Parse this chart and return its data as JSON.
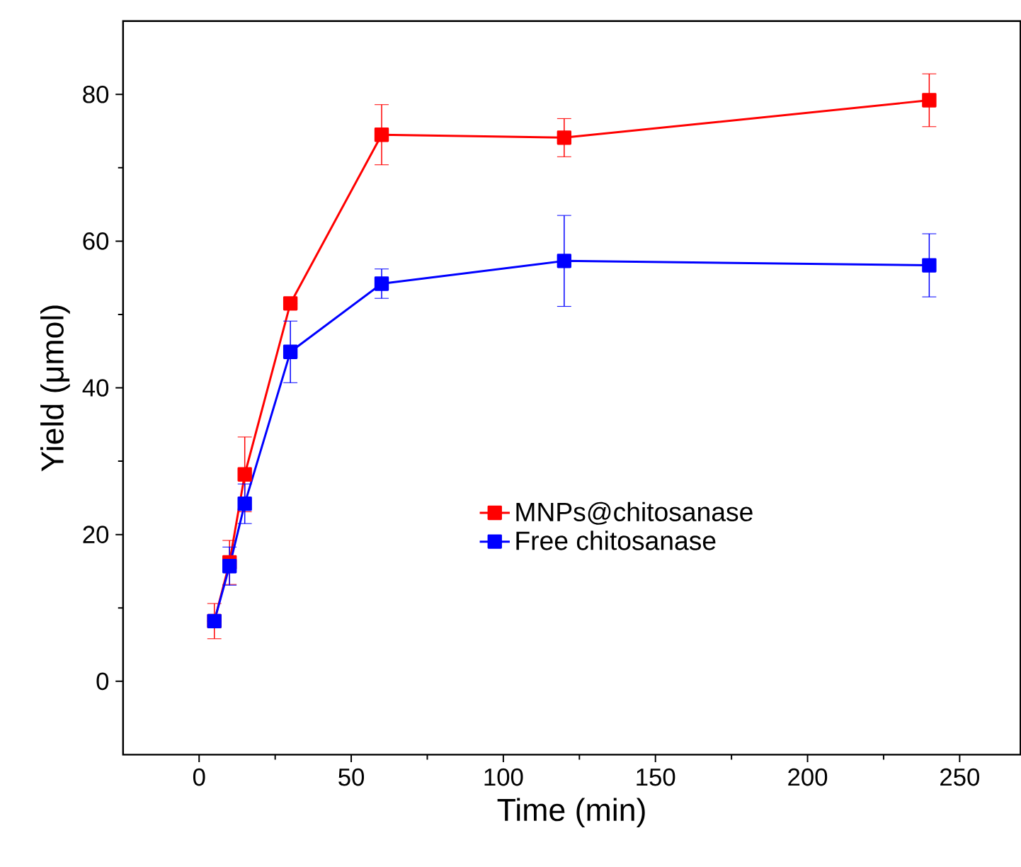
{
  "chart_data": {
    "type": "line",
    "xlabel": "Time (min)",
    "ylabel": "Yield (μmol)",
    "x": [
      5,
      10,
      15,
      30,
      60,
      120,
      240
    ],
    "series": [
      {
        "name": "MNPs@chitosanase",
        "color": "#ff0000",
        "values": [
          8.2,
          16.2,
          28.2,
          51.5,
          74.5,
          74.1,
          79.2
        ],
        "errors": [
          2.4,
          3,
          5.1,
          null,
          4.1,
          2.6,
          3.6
        ]
      },
      {
        "name": "Free chitosanase",
        "color": "#0000ff",
        "values": [
          8.2,
          15.7,
          24.2,
          44.9,
          54.2,
          57.3,
          56.7
        ],
        "errors": [
          null,
          2.6,
          2.7,
          4.2,
          2,
          6.2,
          4.3
        ]
      }
    ],
    "xlim": [
      -25,
      270
    ],
    "ylim": [
      -10,
      90
    ],
    "xticks": [
      0,
      50,
      100,
      150,
      200,
      250
    ],
    "yticks": [
      0,
      20,
      40,
      60,
      80
    ],
    "marker": "square",
    "line_style": "solid",
    "legend": "right",
    "grid": false
  }
}
